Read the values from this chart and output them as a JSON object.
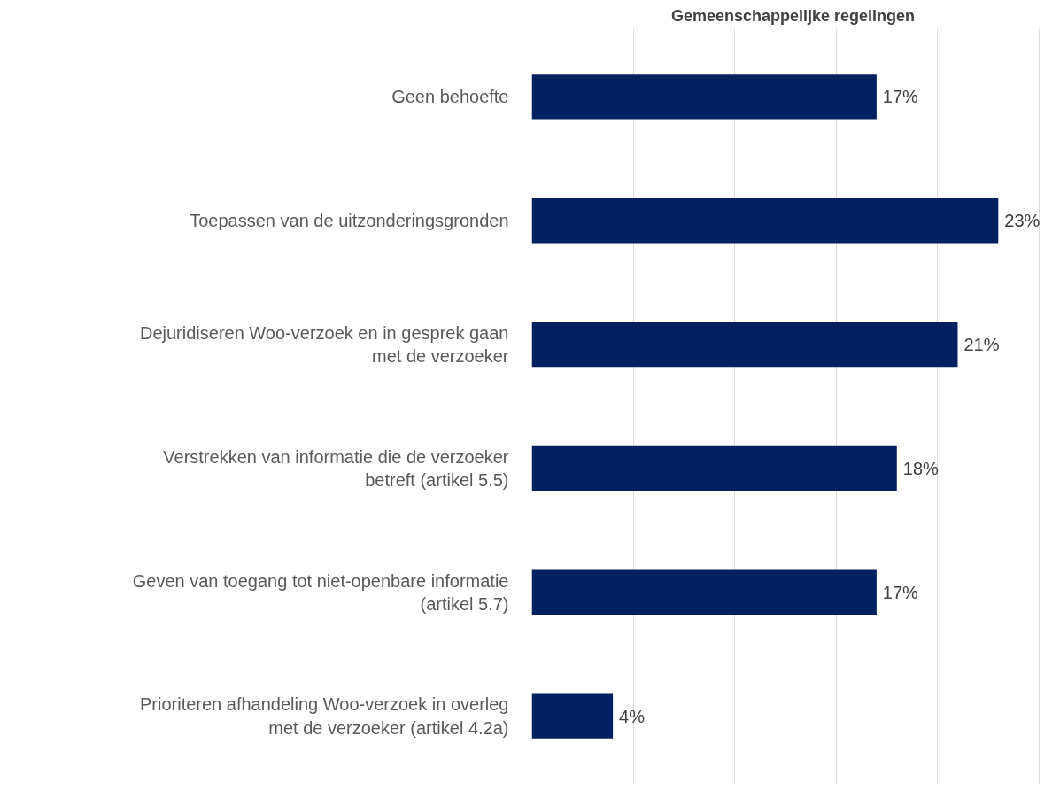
{
  "chart_data": {
    "type": "bar",
    "orientation": "horizontal",
    "title": "Gemeenschappelijke regelingen",
    "categories": [
      "Geen behoefte",
      "Toepassen van de uitzonderingsgronden",
      "Dejuridiseren Woo-verzoek en in gesprek gaan met de verzoeker",
      "Verstrekken van informatie die de verzoeker betreft (artikel 5.5)",
      "Geven van toegang tot niet-openbare informatie (artikel 5.7)",
      "Prioriteren afhandeling Woo-verzoek in overleg met de verzoeker (artikel 4.2a)"
    ],
    "values": [
      17,
      23,
      21,
      18,
      17,
      4
    ],
    "value_labels": [
      "17%",
      "23%",
      "21%",
      "18%",
      "17%",
      "4%"
    ],
    "color": "#002060",
    "grid": "x",
    "tick_labels": "y"
  }
}
